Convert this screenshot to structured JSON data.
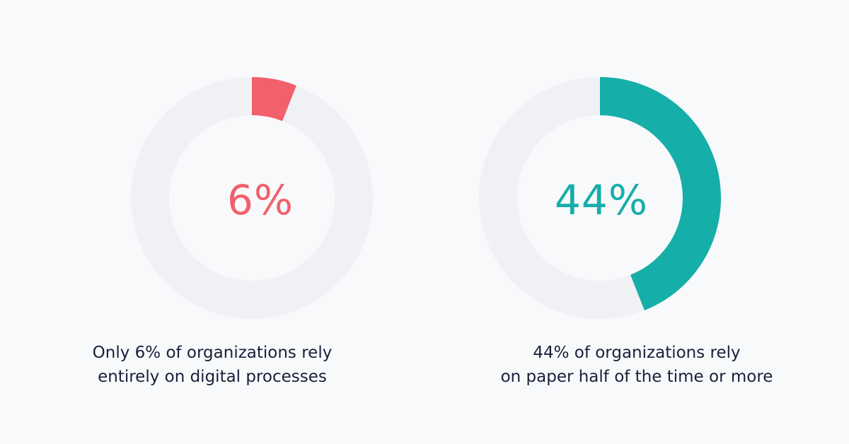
{
  "colors": {
    "background": "#f8f9fb",
    "track": "#f0f1f4",
    "caption_text": "#19203a"
  },
  "chart_data": [
    {
      "type": "pie",
      "style": "donut",
      "value": 6,
      "value_unit": "%",
      "range": [
        0,
        100
      ],
      "center_label": "6%",
      "caption": [
        "Only 6% of organizations rely",
        "entirely on digital processes"
      ],
      "color": "#f2606b"
    },
    {
      "type": "pie",
      "style": "donut",
      "value": 44,
      "value_unit": "%",
      "range": [
        0,
        100
      ],
      "center_label": "44%",
      "caption": [
        "44% of organizations rely",
        "on paper half of the time or more"
      ],
      "color": "#16aea8"
    }
  ]
}
